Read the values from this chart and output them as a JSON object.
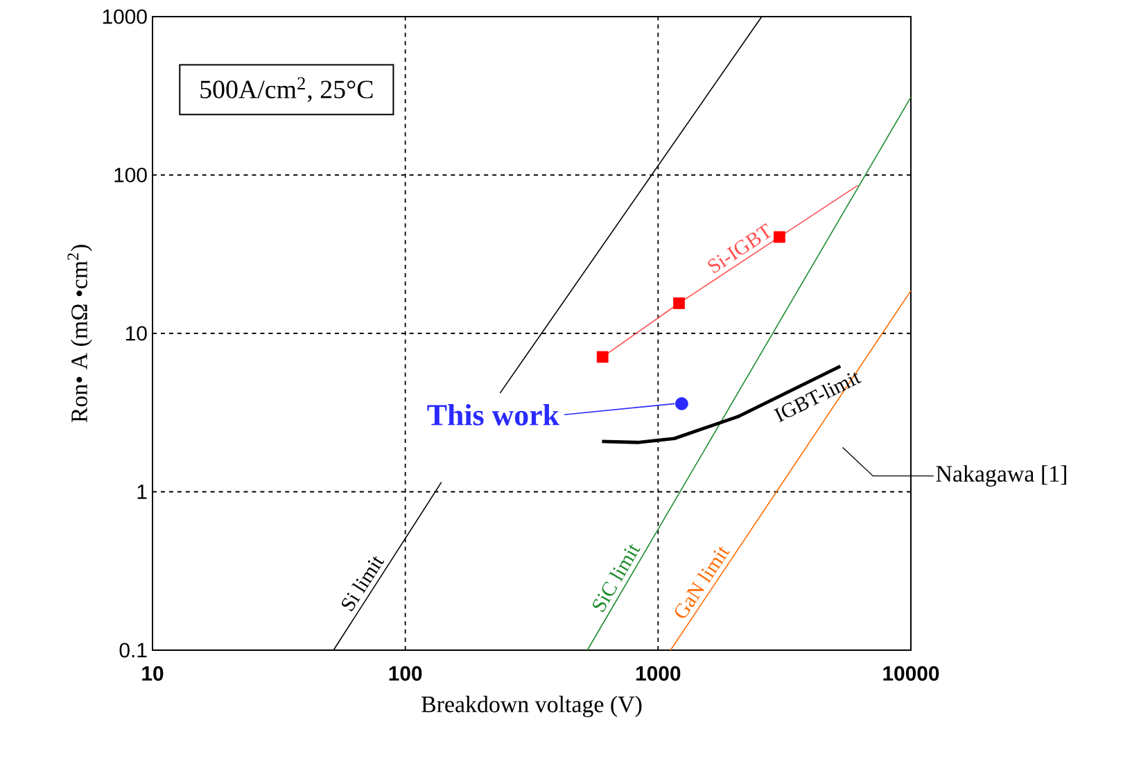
{
  "chart_data": {
    "type": "line",
    "xlabel": "Breakdown voltage (V)",
    "ylabel": "Ron• A (mΩ •cm$^{2}$)",
    "log": "xy",
    "grid": true,
    "xlim": [
      10,
      10000
    ],
    "ylim": [
      0.1,
      1000
    ],
    "xticks": [
      10,
      100,
      1000,
      10000
    ],
    "yticks": [
      {
        "value": 0.1,
        "label": "0.1"
      },
      1,
      10,
      100,
      1000
    ],
    "series": [
      {
        "name": "Si limit",
        "color": "#000000",
        "marker": "none",
        "x": [
          52,
          139,
          180,
          237,
          2570
        ],
        "values": [
          0.1,
          1.15,
          null,
          4.2,
          1000
        ]
      },
      {
        "name": "SiC limit",
        "color": "#1e8c2e",
        "marker": "none",
        "x": [
          525,
          10000
        ],
        "values": [
          0.1,
          310
        ]
      },
      {
        "name": "GaN limit",
        "color": "#ff6a00",
        "marker": "none",
        "x": [
          1120,
          10000
        ],
        "values": [
          0.1,
          18.6
        ]
      },
      {
        "name": "IGBT-limit",
        "color": "#000000",
        "marker": "none",
        "x": [
          600,
          830,
          1160,
          2090,
          5260
        ],
        "values": [
          2.08,
          2.05,
          2.17,
          3.0,
          6.2
        ]
      },
      {
        "name": "Si-IGBT",
        "color": "#ff5050",
        "marker": "none",
        "x": [
          603,
          1210,
          3020,
          6170
        ],
        "values": [
          7.1,
          15.5,
          40.6,
          86
        ]
      },
      {
        "type": "scatter",
        "color": "#ff0000",
        "marker": "square",
        "x": [
          603,
          1210,
          3020
        ],
        "values": [
          7.1,
          15.5,
          40.6
        ]
      },
      {
        "name": "This work",
        "type": "scatter",
        "color": "#2a2aff",
        "marker": "circle",
        "x": [
          1240
        ],
        "values": [
          3.6
        ]
      }
    ],
    "annotations": [
      "500A/cm$^{2}$, 25°C",
      "Nakagawa [1]"
    ]
  }
}
